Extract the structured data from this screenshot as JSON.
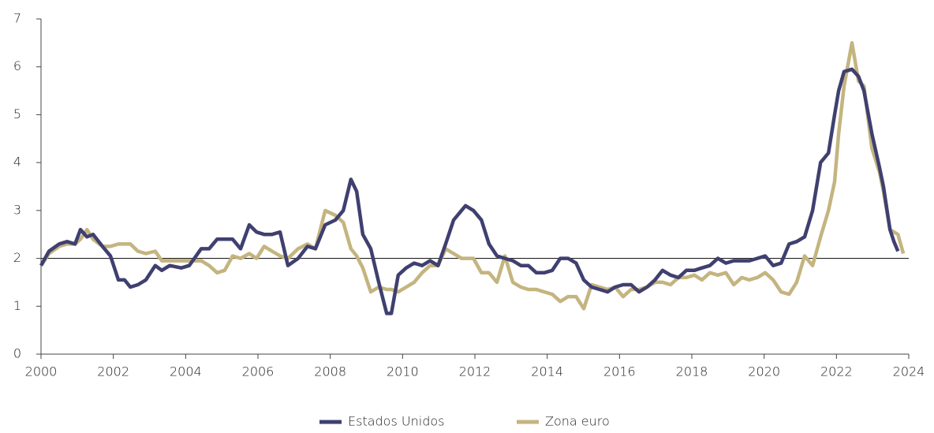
{
  "chart_data": {
    "type": "line",
    "x": [
      2000.0,
      2000.22,
      2000.5,
      2000.72,
      2000.94,
      2001.09,
      2001.27,
      2001.44,
      2001.7,
      2001.92,
      2002.14,
      2002.31,
      2002.47,
      2002.68,
      2002.9,
      2003.16,
      2003.34,
      2003.56,
      2003.88,
      2004.1,
      2004.43,
      2004.65,
      2004.87,
      2005.08,
      2005.3,
      2005.52,
      2005.76,
      2005.96,
      2006.17,
      2006.39,
      2006.61,
      2006.83,
      2007.11,
      2007.37,
      2007.59,
      2007.86,
      2008.14,
      2008.36,
      2008.57,
      2008.73,
      2008.9,
      2009.12,
      2009.34,
      2009.56,
      2009.69,
      2009.88,
      2010.1,
      2010.32,
      2010.54,
      2010.76,
      2010.98,
      2011.19,
      2011.41,
      2011.63,
      2011.74,
      2011.96,
      2012.18,
      2012.39,
      2012.61,
      2012.83,
      2013.05,
      2013.27,
      2013.48,
      2013.7,
      2013.92,
      2014.14,
      2014.36,
      2014.58,
      2014.8,
      2015.01,
      2015.23,
      2015.45,
      2015.67,
      2015.88,
      2016.1,
      2016.32,
      2016.54,
      2016.76,
      2016.98,
      2017.19,
      2017.41,
      2017.63,
      2017.85,
      2018.07,
      2018.28,
      2018.5,
      2018.72,
      2018.94,
      2019.16,
      2019.38,
      2019.59,
      2019.81,
      2020.03,
      2020.25,
      2020.47,
      2020.69,
      2020.9,
      2021.12,
      2021.34,
      2021.56,
      2021.78,
      2021.95,
      2022.06,
      2022.21,
      2022.43,
      2022.61,
      2022.76,
      2022.98,
      2023.19,
      2023.3,
      2023.48,
      2023.59,
      2023.7,
      2023.85
    ],
    "series": [
      {
        "name": "Estados Unidos",
        "color": "#3f4070",
        "values": [
          1.85,
          2.15,
          2.3,
          2.35,
          2.3,
          2.6,
          2.45,
          2.5,
          2.25,
          2.05,
          1.55,
          1.55,
          1.4,
          1.45,
          1.55,
          1.85,
          1.75,
          1.85,
          1.8,
          1.85,
          2.2,
          2.2,
          2.4,
          2.4,
          2.4,
          2.2,
          2.7,
          2.55,
          2.5,
          2.5,
          2.55,
          1.85,
          2.0,
          2.25,
          2.2,
          2.7,
          2.8,
          3.0,
          3.65,
          3.4,
          2.5,
          2.2,
          1.5,
          0.85,
          0.85,
          1.65,
          1.8,
          1.9,
          1.85,
          1.95,
          1.85,
          2.3,
          2.8,
          3.0,
          3.1,
          3.0,
          2.8,
          2.3,
          2.05,
          2.0,
          1.95,
          1.85,
          1.85,
          1.7,
          1.7,
          1.75,
          2.0,
          2.0,
          1.9,
          1.55,
          1.4,
          1.35,
          1.3,
          1.4,
          1.45,
          1.45,
          1.3,
          1.4,
          1.55,
          1.75,
          1.65,
          1.6,
          1.75,
          1.75,
          1.8,
          1.85,
          2.0,
          1.9,
          1.95,
          1.95,
          1.95,
          2.0,
          2.05,
          1.85,
          1.9,
          2.3,
          2.35,
          2.45,
          3.0,
          4.0,
          4.2,
          5.0,
          5.5,
          5.9,
          5.95,
          5.8,
          5.5,
          4.6,
          3.9,
          3.5,
          2.6,
          2.35,
          2.15,
          null
        ]
      },
      {
        "name": "Zona euro",
        "color": "#c4b47f",
        "values": [
          1.85,
          2.1,
          2.25,
          2.3,
          2.3,
          2.4,
          2.6,
          2.4,
          2.25,
          2.25,
          2.3,
          2.3,
          2.3,
          2.15,
          2.1,
          2.15,
          1.95,
          1.95,
          1.95,
          1.95,
          1.95,
          1.85,
          1.7,
          1.75,
          2.05,
          2.0,
          2.1,
          2.0,
          2.25,
          2.15,
          2.05,
          2.0,
          2.2,
          2.3,
          2.2,
          3.0,
          2.9,
          2.75,
          2.2,
          2.05,
          1.8,
          1.3,
          1.4,
          1.35,
          1.35,
          1.3,
          1.4,
          1.5,
          1.7,
          1.85,
          1.85,
          2.2,
          2.1,
          2.0,
          2.0,
          2.0,
          1.7,
          1.7,
          1.5,
          2.05,
          1.5,
          1.4,
          1.35,
          1.35,
          1.3,
          1.25,
          1.1,
          1.2,
          1.2,
          0.95,
          1.45,
          1.4,
          1.35,
          1.4,
          1.2,
          1.35,
          1.35,
          1.4,
          1.5,
          1.5,
          1.45,
          1.6,
          1.6,
          1.65,
          1.55,
          1.7,
          1.65,
          1.7,
          1.45,
          1.6,
          1.55,
          1.6,
          1.7,
          1.55,
          1.3,
          1.25,
          1.5,
          2.05,
          1.85,
          2.45,
          3.0,
          3.6,
          4.6,
          5.6,
          6.5,
          5.7,
          5.6,
          4.3,
          3.8,
          3.4,
          2.6,
          2.55,
          2.5,
          2.1
        ]
      }
    ],
    "xlim": [
      2000,
      2024
    ],
    "xticks": [
      2000,
      2002,
      2004,
      2006,
      2008,
      2010,
      2012,
      2014,
      2016,
      2018,
      2020,
      2022,
      2024
    ],
    "ylim": [
      0,
      7
    ],
    "yticks": [
      0,
      1,
      2,
      3,
      4,
      5,
      6,
      7
    ],
    "reference_line": 2,
    "legend": "bottom"
  }
}
